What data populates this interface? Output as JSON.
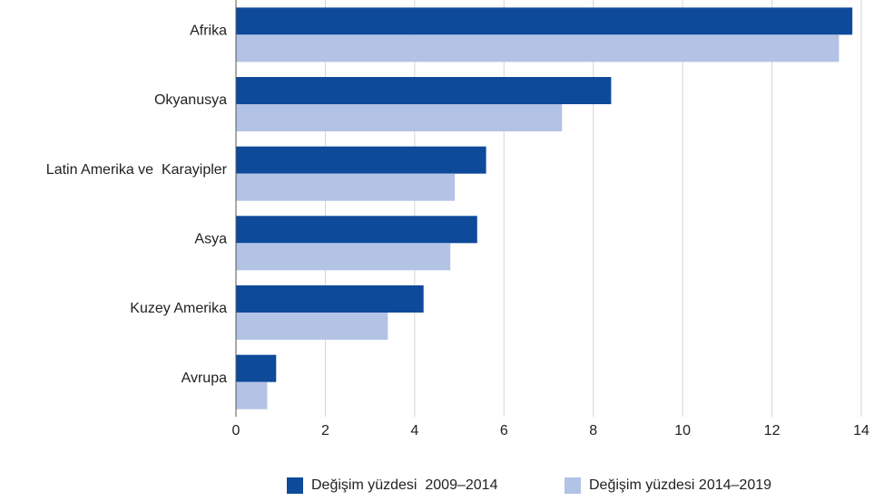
{
  "chart_data": {
    "type": "bar",
    "orientation": "horizontal",
    "categories": [
      "Afrika",
      "Okyanusya",
      "Latin Amerika ve  Karayipler",
      "Asya",
      "Kuzey Amerika",
      "Avrupa"
    ],
    "series": [
      {
        "name": "Değişim yüzdesi  2009–2014",
        "color": "#0e4a9a",
        "values": [
          13.8,
          8.4,
          5.6,
          5.4,
          4.2,
          0.9
        ]
      },
      {
        "name": "Değişim yüzdesi 2014–2019",
        "color": "#b3c3e5",
        "values": [
          13.5,
          7.3,
          4.9,
          4.8,
          3.4,
          0.7
        ]
      }
    ],
    "xlim": [
      0,
      14
    ],
    "xticks": [
      0,
      2,
      4,
      6,
      8,
      10,
      12,
      14
    ],
    "grid": true,
    "legend": "bottom"
  }
}
